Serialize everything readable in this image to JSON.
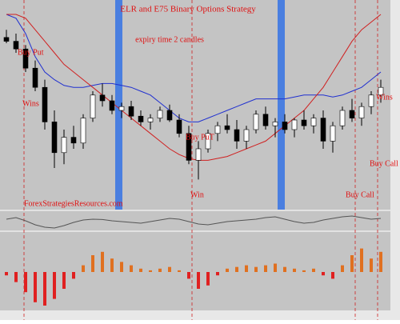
{
  "title": "ELR and E75 Binary Options Strategy",
  "subtitle": "expiry time 2 candles",
  "watermark": "ForexStrategiesResources.com",
  "annotations": [
    "Buy Put",
    "Wins",
    "Buy PuT",
    "Win",
    "Buy Call",
    "Buy Call",
    "Wins"
  ],
  "candles": [
    [
      88,
      92,
      85,
      86
    ],
    [
      86,
      90,
      80,
      82
    ],
    [
      82,
      84,
      70,
      72
    ],
    [
      72,
      76,
      60,
      62
    ],
    [
      62,
      66,
      40,
      44
    ],
    [
      44,
      50,
      20,
      28
    ],
    [
      28,
      40,
      22,
      36
    ],
    [
      36,
      42,
      30,
      33
    ],
    [
      33,
      48,
      30,
      46
    ],
    [
      46,
      60,
      44,
      58
    ],
    [
      58,
      64,
      52,
      55
    ],
    [
      55,
      58,
      48,
      50
    ],
    [
      50,
      54,
      46,
      52
    ],
    [
      52,
      55,
      45,
      47
    ],
    [
      47,
      50,
      42,
      44
    ],
    [
      44,
      48,
      40,
      46
    ],
    [
      46,
      52,
      44,
      50
    ],
    [
      50,
      53,
      44,
      45
    ],
    [
      45,
      48,
      36,
      38
    ],
    [
      38,
      42,
      22,
      24
    ],
    [
      24,
      34,
      14,
      30
    ],
    [
      30,
      40,
      28,
      38
    ],
    [
      38,
      44,
      34,
      42
    ],
    [
      42,
      48,
      38,
      40
    ],
    [
      40,
      45,
      30,
      34
    ],
    [
      34,
      42,
      30,
      40
    ],
    [
      40,
      50,
      38,
      48
    ],
    [
      48,
      52,
      40,
      42
    ],
    [
      42,
      46,
      36,
      44
    ],
    [
      44,
      48,
      38,
      40
    ],
    [
      40,
      46,
      36,
      45
    ],
    [
      45,
      50,
      40,
      42
    ],
    [
      42,
      48,
      38,
      46
    ],
    [
      46,
      50,
      30,
      34
    ],
    [
      34,
      44,
      28,
      42
    ],
    [
      42,
      52,
      40,
      50
    ],
    [
      50,
      56,
      44,
      46
    ],
    [
      46,
      54,
      42,
      52
    ],
    [
      52,
      60,
      48,
      58
    ],
    [
      58,
      66,
      54,
      62
    ]
  ],
  "blue_line": [
    100,
    98,
    90,
    78,
    70,
    66,
    63,
    62,
    62,
    63,
    64,
    64,
    63,
    62,
    60,
    58,
    54,
    50,
    46,
    44,
    44,
    46,
    48,
    50,
    52,
    54,
    56,
    56,
    56,
    56,
    57,
    58,
    58,
    58,
    57,
    58,
    60,
    62,
    66,
    70
  ],
  "red_line": [
    100,
    100,
    98,
    92,
    86,
    80,
    74,
    70,
    66,
    62,
    58,
    54,
    50,
    46,
    42,
    38,
    34,
    30,
    27,
    25,
    24,
    24,
    25,
    26,
    28,
    30,
    32,
    34,
    38,
    42,
    46,
    50,
    56,
    62,
    70,
    78,
    86,
    92,
    96,
    100
  ],
  "oscillator": [
    60,
    70,
    50,
    25,
    10,
    5,
    20,
    40,
    55,
    60,
    58,
    50,
    45,
    40,
    35,
    45,
    55,
    65,
    60,
    45,
    30,
    25,
    35,
    45,
    50,
    55,
    60,
    70,
    75,
    60,
    45,
    35,
    40,
    55,
    65,
    75,
    80,
    70,
    60,
    65
  ],
  "histogram": [
    -10,
    -30,
    -60,
    -90,
    -100,
    -80,
    -50,
    -20,
    20,
    50,
    60,
    40,
    30,
    20,
    10,
    5,
    10,
    15,
    5,
    -20,
    -50,
    -40,
    -10,
    10,
    15,
    20,
    15,
    20,
    25,
    15,
    10,
    5,
    10,
    -10,
    -20,
    20,
    50,
    70,
    40,
    60
  ]
}
